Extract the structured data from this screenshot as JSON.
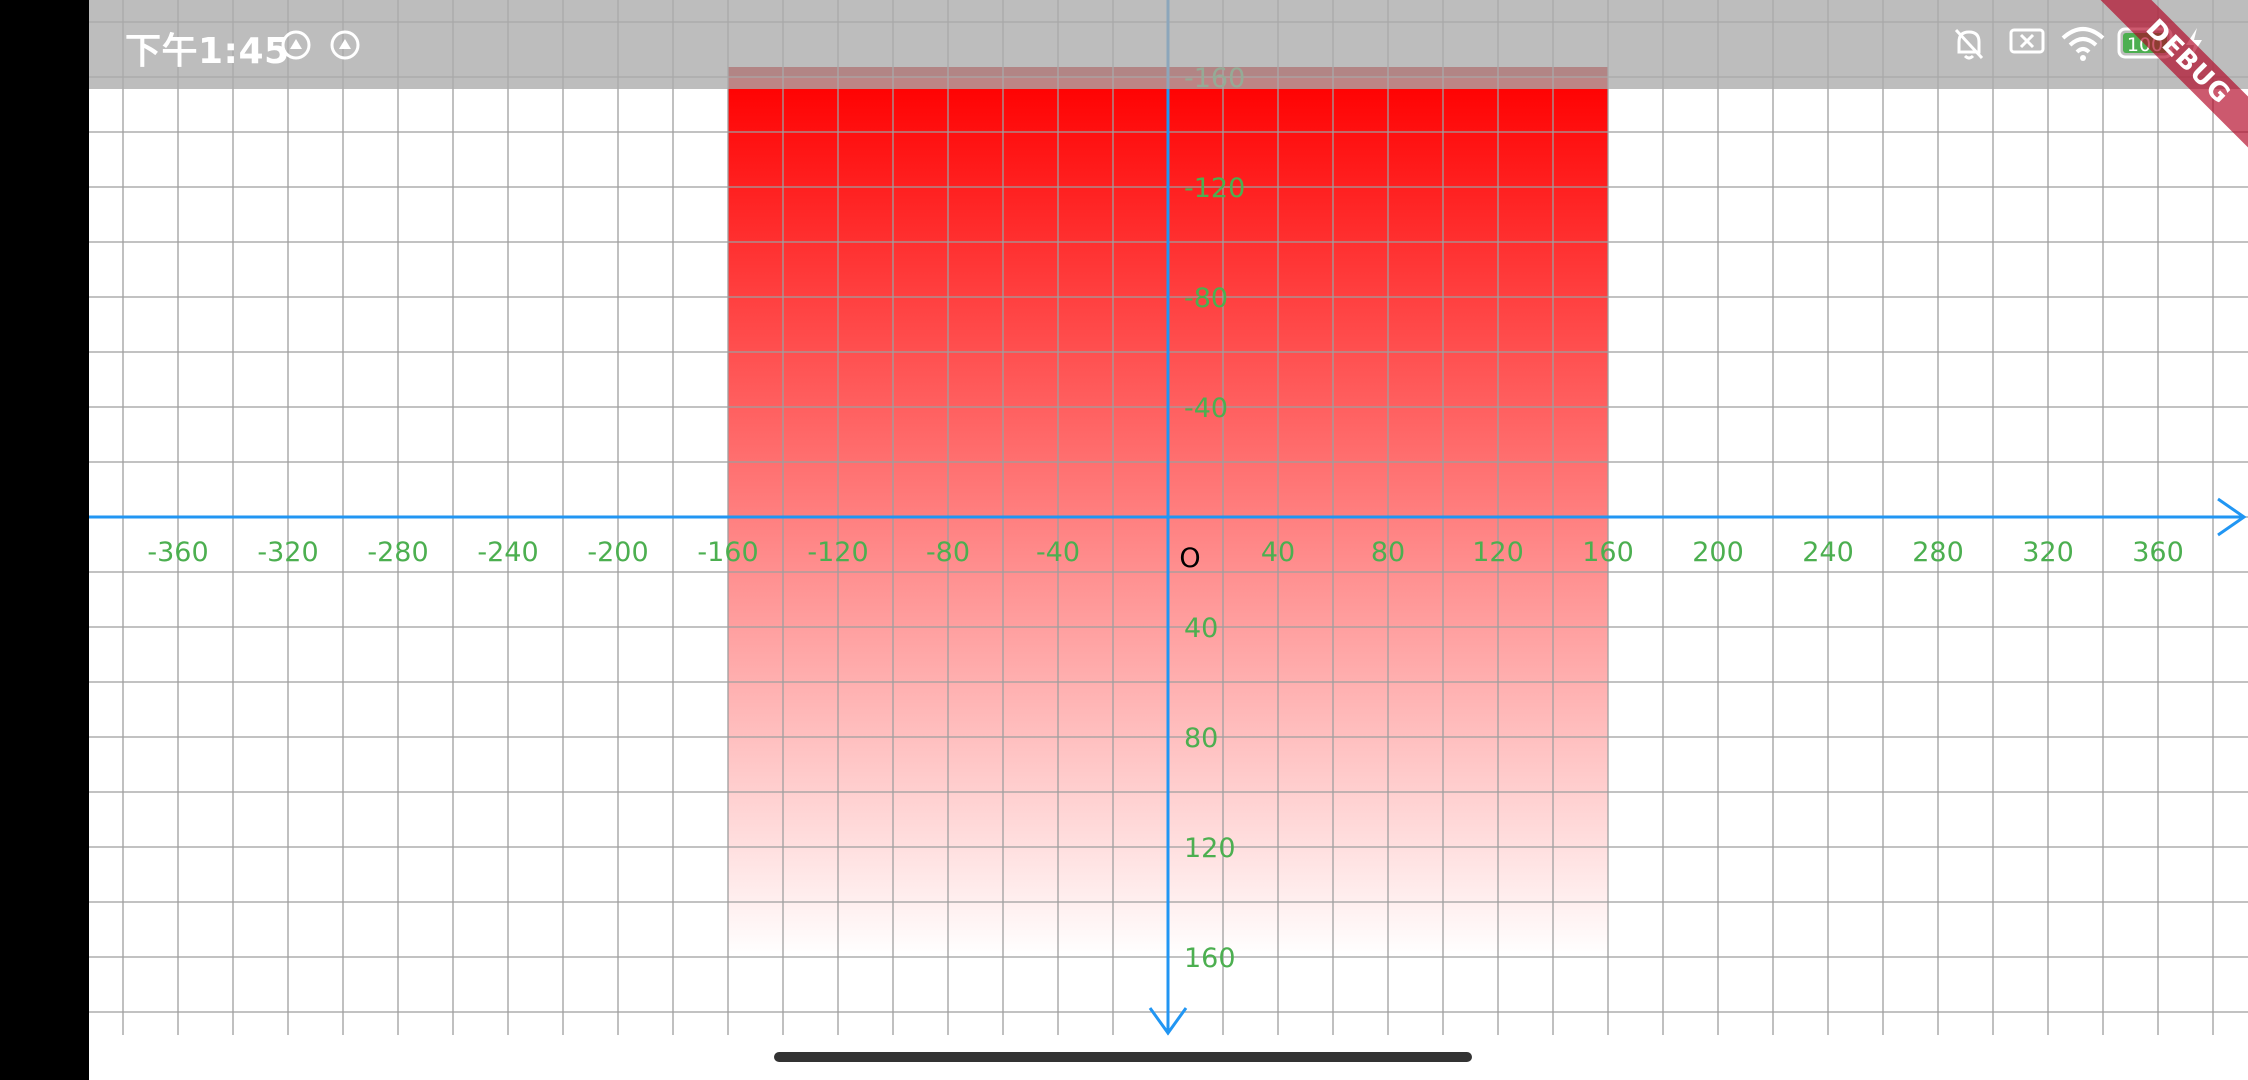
{
  "status_bar": {
    "time": "下午1:45",
    "app_icons": [
      "circle-arrow-icon",
      "circle-arrow-icon"
    ],
    "system_icons": [
      "bell-off-icon",
      "sim-x-icon",
      "wifi-icon",
      "battery-icon",
      "charging-bolt-icon"
    ],
    "battery_level": "100",
    "battery_color": "#4caf50"
  },
  "debug_banner": {
    "label": "DEBUG"
  },
  "chart_data": {
    "type": "area",
    "x_axis": {
      "tick_labels": [
        "-360",
        "-320",
        "-280",
        "-240",
        "-200",
        "-160",
        "-120",
        "-80",
        "-40",
        "40",
        "80",
        "120",
        "160",
        "200",
        "240",
        "280",
        "320",
        "360"
      ],
      "range": [
        -390,
        390
      ],
      "direction": "right"
    },
    "y_axis": {
      "tick_labels": [
        "-160",
        "-120",
        "-80",
        "-40",
        "40",
        "80",
        "120",
        "160"
      ],
      "range": [
        -160,
        160
      ],
      "direction": "down"
    },
    "origin_label": "O",
    "grid": {
      "on": true,
      "spacing": 20,
      "color": "#9e9e9e"
    },
    "axis_color": "#2196f3",
    "tick_label_color": "#4caf50",
    "origin_label_color": "#000000",
    "rect": {
      "x_range": [
        -160,
        160
      ],
      "y_range": [
        -160,
        160
      ],
      "gradient": "vertical",
      "color_top": "#ff0000",
      "color_bottom": "#ffffff",
      "top_edge_color": "#cc0000"
    }
  }
}
